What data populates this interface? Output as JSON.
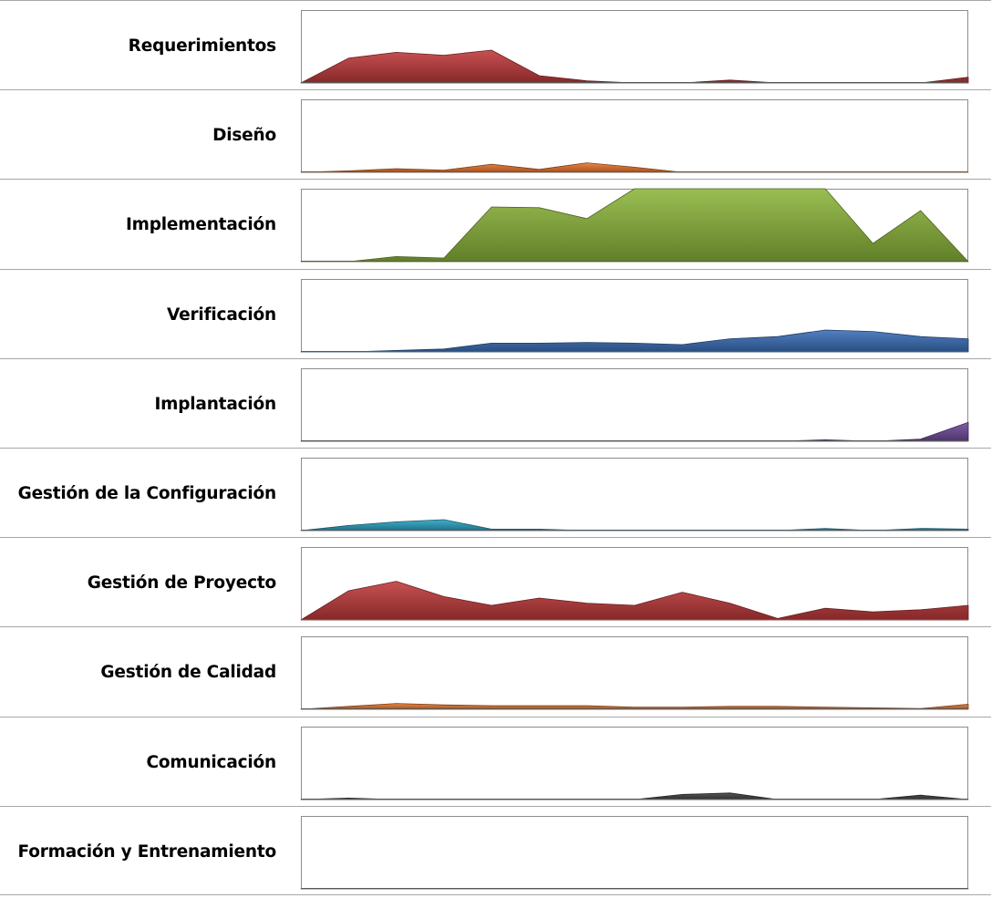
{
  "chart_data": [
    {
      "type": "area",
      "title": "Requerimientos",
      "color": "#c0393b",
      "ylim": [
        0,
        100
      ],
      "x": [
        1,
        2,
        3,
        4,
        5,
        6,
        7,
        8,
        9,
        10,
        11,
        12,
        13,
        14,
        15
      ],
      "values": [
        0,
        34,
        42,
        38,
        45,
        10,
        3,
        0,
        0,
        4,
        0,
        0,
        0,
        0,
        8
      ]
    },
    {
      "type": "area",
      "title": "Diseño",
      "color": "#e8772e",
      "ylim": [
        0,
        100
      ],
      "x": [
        1,
        2,
        3,
        4,
        5,
        6,
        7,
        8,
        9,
        10,
        11,
        12,
        13,
        14,
        15
      ],
      "values": [
        0,
        2,
        5,
        3,
        11,
        4,
        13,
        7,
        0,
        0,
        0,
        0,
        0,
        0,
        0
      ]
    },
    {
      "type": "area",
      "title": "Implementación",
      "color": "#8cb53a",
      "ylim": [
        0,
        100
      ],
      "x": [
        1,
        2,
        3,
        4,
        5,
        6,
        7,
        8,
        9,
        10,
        11,
        12,
        13,
        14,
        15
      ],
      "values": [
        0,
        0,
        7,
        5,
        75,
        74,
        59,
        100,
        100,
        100,
        100,
        100,
        25,
        70,
        0
      ]
    },
    {
      "type": "area",
      "title": "Verificación",
      "color": "#3a6fb8",
      "ylim": [
        0,
        100
      ],
      "x": [
        1,
        2,
        3,
        4,
        5,
        6,
        7,
        8,
        9,
        10,
        11,
        12,
        13,
        14,
        15
      ],
      "values": [
        0,
        0,
        2,
        4,
        12,
        12,
        13,
        12,
        10,
        18,
        21,
        30,
        28,
        21,
        18
      ]
    },
    {
      "type": "area",
      "title": "Implantación",
      "color": "#6e4a9a",
      "ylim": [
        0,
        100
      ],
      "x": [
        1,
        2,
        3,
        4,
        5,
        6,
        7,
        8,
        9,
        10,
        11,
        12,
        13,
        14,
        15
      ],
      "values": [
        0,
        0,
        0,
        0,
        0,
        0,
        0,
        0,
        0,
        0,
        0,
        2,
        0,
        3,
        26
      ]
    },
    {
      "type": "area",
      "title": "Gestión de la Configuración",
      "color": "#2aa4c4",
      "ylim": [
        0,
        100
      ],
      "x": [
        1,
        2,
        3,
        4,
        5,
        6,
        7,
        8,
        9,
        10,
        11,
        12,
        13,
        14,
        15
      ],
      "values": [
        0,
        7,
        12,
        15,
        2,
        2,
        0,
        0,
        0,
        0,
        0,
        3,
        0,
        3,
        2
      ]
    },
    {
      "type": "area",
      "title": "Gestión de Proyecto",
      "color": "#c0393b",
      "ylim": [
        0,
        100
      ],
      "x": [
        1,
        2,
        3,
        4,
        5,
        6,
        7,
        8,
        9,
        10,
        11,
        12,
        13,
        14,
        15
      ],
      "values": [
        0,
        40,
        53,
        32,
        20,
        30,
        23,
        20,
        38,
        23,
        2,
        16,
        11,
        14,
        20
      ]
    },
    {
      "type": "area",
      "title": "Gestión de Calidad",
      "color": "#e8772e",
      "ylim": [
        0,
        100
      ],
      "x": [
        1,
        2,
        3,
        4,
        5,
        6,
        7,
        8,
        9,
        10,
        11,
        12,
        13,
        14,
        15
      ],
      "values": [
        0,
        4,
        8,
        6,
        5,
        5,
        5,
        3,
        3,
        4,
        4,
        3,
        2,
        1,
        7
      ]
    },
    {
      "type": "area",
      "title": "Comunicación",
      "color": "#404040",
      "ylim": [
        0,
        100
      ],
      "x": [
        1,
        2,
        3,
        4,
        5,
        6,
        7,
        8,
        9,
        10,
        11,
        12,
        13,
        14,
        15
      ],
      "values": [
        0,
        2,
        0,
        0,
        0,
        0,
        0,
        0,
        7,
        9,
        0,
        0,
        0,
        6,
        0
      ]
    },
    {
      "type": "area",
      "title": "Formación y Entrenamiento",
      "color": "#7f7f7f",
      "ylim": [
        0,
        100
      ],
      "x": [
        1,
        2,
        3,
        4,
        5,
        6,
        7,
        8,
        9,
        10,
        11,
        12,
        13,
        14,
        15
      ],
      "values": [
        0,
        0,
        0,
        0,
        0,
        0,
        0,
        0,
        0,
        0,
        0,
        0,
        0,
        0,
        0
      ]
    }
  ]
}
